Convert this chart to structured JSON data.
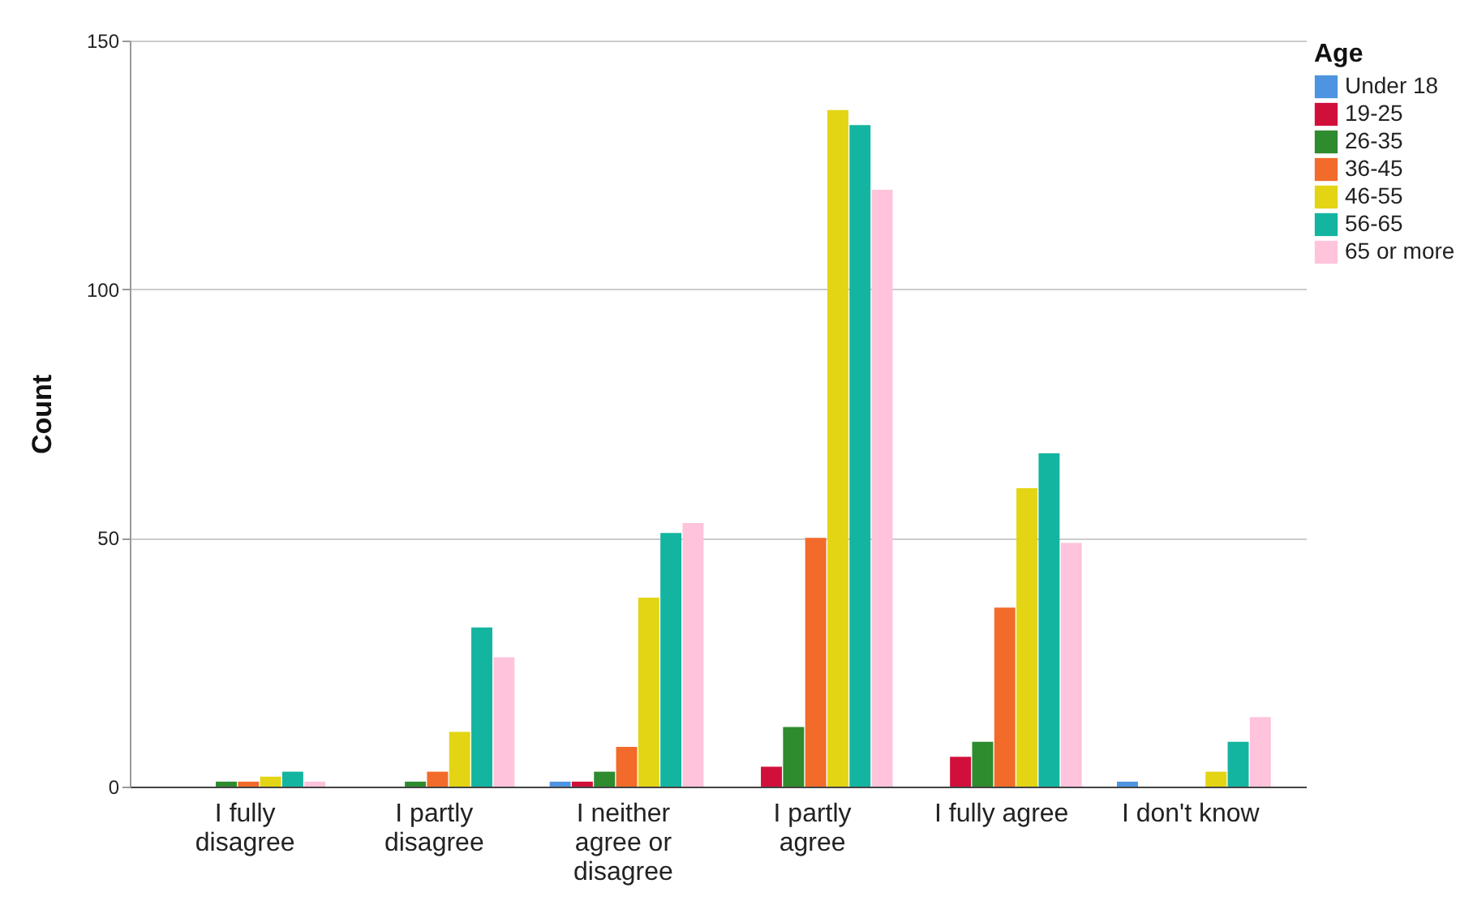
{
  "chart_data": {
    "type": "bar",
    "ylabel": "Count",
    "legend_title": "Age",
    "legend": "top right",
    "grid": "y",
    "categories": [
      "I fully disagree",
      "I partly disagree",
      "I neither agree or disagree",
      "I partly agree",
      "I fully agree",
      "I don't know"
    ],
    "ylim": [
      0,
      150
    ],
    "yticks": [
      0,
      50,
      100,
      150
    ],
    "series": [
      {
        "name": "Under 18",
        "color": "#4f94e0",
        "values": [
          0,
          0,
          1,
          0,
          0,
          1
        ]
      },
      {
        "name": "19-25",
        "color": "#d0103a",
        "values": [
          0,
          0,
          1,
          4,
          6,
          0
        ]
      },
      {
        "name": "26-35",
        "color": "#2e8b2e",
        "values": [
          1,
          1,
          3,
          12,
          9,
          0
        ]
      },
      {
        "name": "36-45",
        "color": "#f26b2b",
        "values": [
          1,
          3,
          8,
          50,
          36,
          0
        ]
      },
      {
        "name": "46-55",
        "color": "#e3d514",
        "values": [
          2,
          11,
          38,
          136,
          60,
          3
        ]
      },
      {
        "name": "56-65",
        "color": "#13b5a0",
        "values": [
          3,
          32,
          51,
          133,
          67,
          9
        ]
      },
      {
        "name": "65 or more",
        "color": "#ffc3dc",
        "values": [
          1,
          26,
          53,
          120,
          49,
          14
        ]
      }
    ]
  }
}
